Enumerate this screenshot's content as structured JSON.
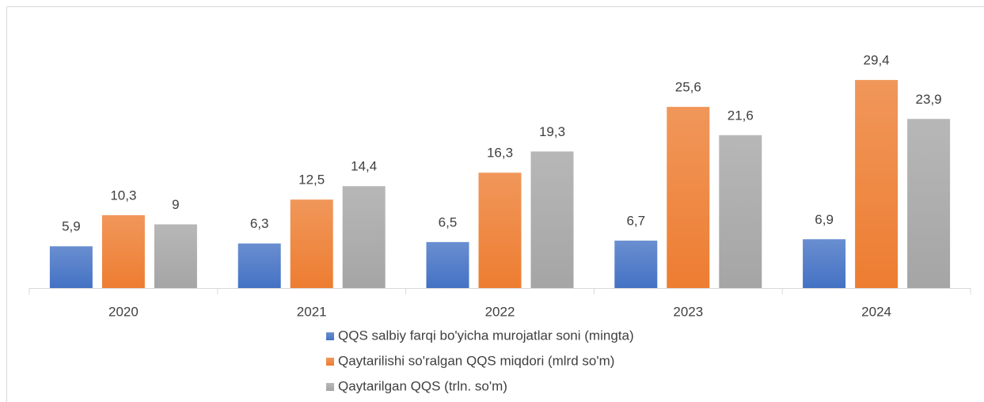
{
  "chart_data": {
    "type": "bar",
    "categories": [
      "2020",
      "2021",
      "2022",
      "2023",
      "2024"
    ],
    "series": [
      {
        "name": "QQS salbiy farqi bo'yicha murojatlar soni (mingta)",
        "color": "#4472c4",
        "values": [
          5.9,
          6.3,
          6.5,
          6.7,
          6.9
        ],
        "value_labels": [
          "5,9",
          "6,3",
          "6,5",
          "6,7",
          "6,9"
        ]
      },
      {
        "name": "Qaytarilishi so'ralgan QQS miqdori (mlrd so'm)",
        "color": "#ed7d31",
        "values": [
          10.3,
          12.5,
          16.3,
          25.6,
          29.4
        ],
        "value_labels": [
          "10,3",
          "12,5",
          "16,3",
          "25,6",
          "29,4"
        ]
      },
      {
        "name": "Qaytarilgan QQS (trln. so'm)",
        "color": "#a5a5a5",
        "values": [
          9,
          14.4,
          19.3,
          21.6,
          23.9
        ],
        "value_labels": [
          "9",
          "14,4",
          "19,3",
          "21,6",
          "23,9"
        ]
      }
    ],
    "ylim": [
      0,
      35
    ],
    "legend": "bottom"
  }
}
